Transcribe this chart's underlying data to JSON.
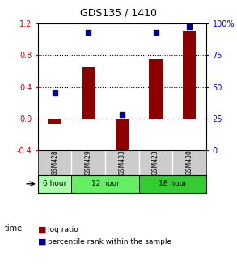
{
  "title": "GDS135 / 1410",
  "samples": [
    "GSM428",
    "GSM429",
    "GSM433",
    "GSM423",
    "GSM430"
  ],
  "log_ratio": [
    -0.07,
    0.65,
    -0.45,
    0.75,
    1.1
  ],
  "percentile_rank": [
    45,
    93,
    28,
    93,
    98
  ],
  "ylim_left": [
    -0.4,
    1.2
  ],
  "ylim_right": [
    0,
    100
  ],
  "yticks_left": [
    -0.4,
    0.0,
    0.4,
    0.8,
    1.2
  ],
  "yticks_right": [
    0,
    25,
    50,
    75,
    100
  ],
  "hline_dotted": [
    0.4,
    0.8
  ],
  "hline_dashed": 0.0,
  "time_groups": [
    {
      "label": "6 hour",
      "span": [
        0,
        1
      ],
      "color": "#90EE90"
    },
    {
      "label": "12 hour",
      "span": [
        1,
        3
      ],
      "color": "#66DD66"
    },
    {
      "label": "18 hour",
      "span": [
        3,
        5
      ],
      "color": "#44CC44"
    }
  ],
  "bar_color": "#8B0000",
  "dot_color": "#00008B",
  "bar_width": 0.4,
  "background_plot": "#f5f5f5",
  "background_label": "#cccccc",
  "right_axis_color": "#0000CC",
  "left_axis_color": "#CC0000"
}
